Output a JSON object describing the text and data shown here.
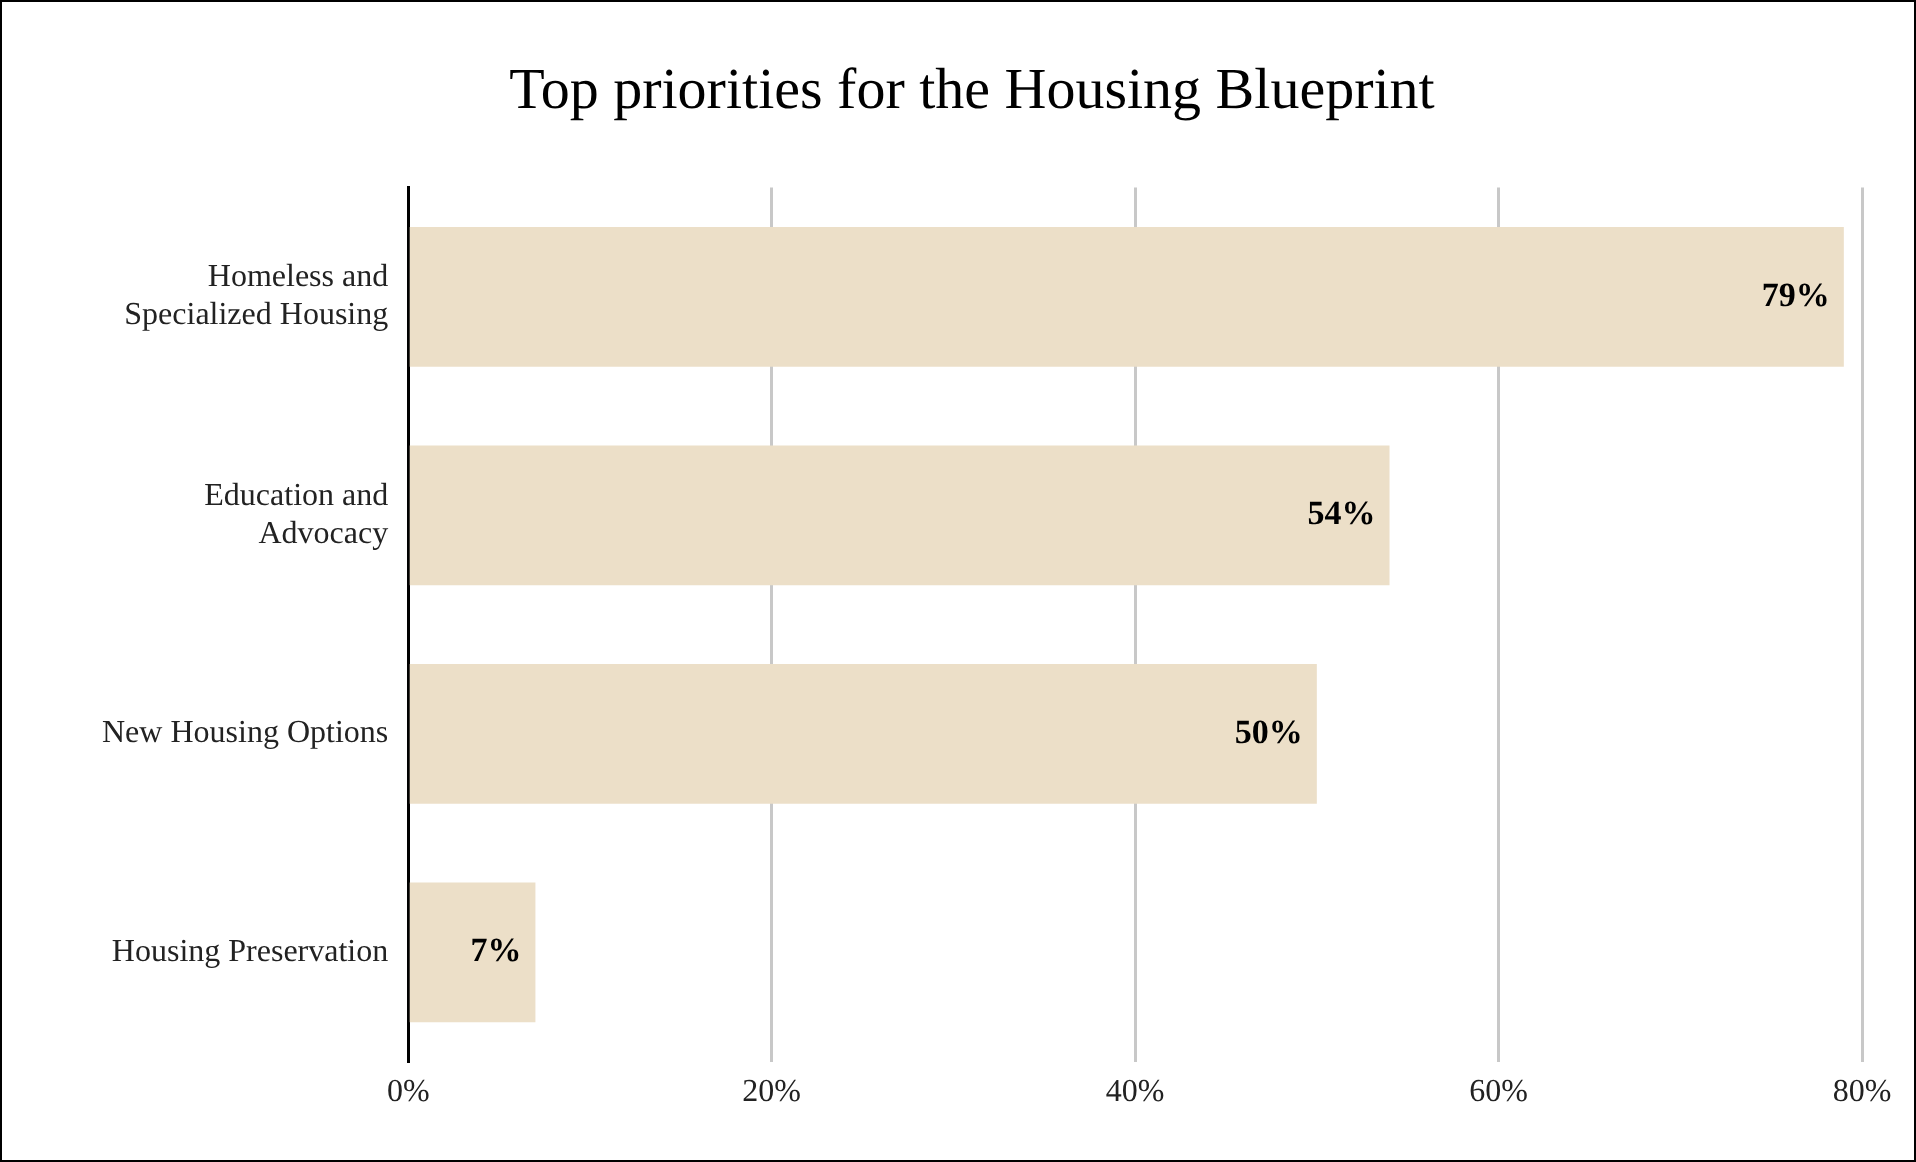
{
  "chart_data": {
    "type": "bar",
    "orientation": "horizontal",
    "title": "Top priorities for the Housing Blueprint",
    "categories": [
      "Homeless and Specialized Housing",
      "Education and Advocacy",
      "New Housing Options",
      "Housing Preservation"
    ],
    "values": [
      79,
      54,
      50,
      7
    ],
    "color": "#ecdfc8",
    "xlim": [
      0,
      80
    ],
    "xticks": [
      {
        "value": 0,
        "label": "0%"
      },
      {
        "value": 20,
        "label": "20%"
      },
      {
        "value": 40,
        "label": "40%"
      },
      {
        "value": 60,
        "label": "60%"
      },
      {
        "value": 80,
        "label": "80%"
      }
    ],
    "value_labels": [
      "79%",
      "54%",
      "50%",
      "7%"
    ],
    "grid": "x",
    "legend": false
  }
}
